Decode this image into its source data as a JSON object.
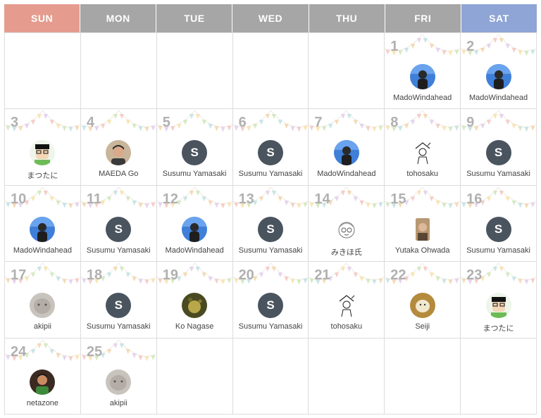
{
  "weekdays": [
    {
      "label": "SUN",
      "color": "#e59c8f"
    },
    {
      "label": "MON",
      "color": "#a6a6a6"
    },
    {
      "label": "TUE",
      "color": "#a6a6a6"
    },
    {
      "label": "WED",
      "color": "#a6a6a6"
    },
    {
      "label": "THU",
      "color": "#a6a6a6"
    },
    {
      "label": "FRI",
      "color": "#a6a6a6"
    },
    {
      "label": "SAT",
      "color": "#8fa5d6"
    }
  ],
  "leading_blank_days": 5,
  "days": [
    {
      "day": "1",
      "name": "MadoWindahead",
      "avatar": "photo-blue"
    },
    {
      "day": "2",
      "name": "MadoWindahead",
      "avatar": "photo-blue"
    },
    {
      "day": "3",
      "name": "まつたに",
      "avatar": "cartoon-green"
    },
    {
      "day": "4",
      "name": "MAEDA Go",
      "avatar": "photo-tan"
    },
    {
      "day": "5",
      "name": "Susumu Yamasaki",
      "avatar": "letter",
      "letter": "S"
    },
    {
      "day": "6",
      "name": "Susumu Yamasaki",
      "avatar": "letter",
      "letter": "S"
    },
    {
      "day": "7",
      "name": "MadoWindahead",
      "avatar": "photo-blue"
    },
    {
      "day": "8",
      "name": "tohosaku",
      "avatar": "sketch"
    },
    {
      "day": "9",
      "name": "Susumu Yamasaki",
      "avatar": "letter",
      "letter": "S"
    },
    {
      "day": "10",
      "name": "MadoWindahead",
      "avatar": "photo-blue"
    },
    {
      "day": "11",
      "name": "Susumu Yamasaki",
      "avatar": "letter",
      "letter": "S"
    },
    {
      "day": "12",
      "name": "MadoWindahead",
      "avatar": "photo-blue"
    },
    {
      "day": "13",
      "name": "Susumu Yamasaki",
      "avatar": "letter",
      "letter": "S"
    },
    {
      "day": "14",
      "name": "みきほ氏",
      "avatar": "sketch-face"
    },
    {
      "day": "15",
      "name": "Yutaka Ohwada",
      "avatar": "photo-brown"
    },
    {
      "day": "16",
      "name": "Susumu Yamasaki",
      "avatar": "letter",
      "letter": "S"
    },
    {
      "day": "17",
      "name": "akipii",
      "avatar": "photo-grey"
    },
    {
      "day": "18",
      "name": "Susumu Yamasaki",
      "avatar": "letter",
      "letter": "S"
    },
    {
      "day": "19",
      "name": "Ko Nagase",
      "avatar": "photo-olive"
    },
    {
      "day": "20",
      "name": "Susumu Yamasaki",
      "avatar": "letter",
      "letter": "S"
    },
    {
      "day": "21",
      "name": "tohosaku",
      "avatar": "sketch"
    },
    {
      "day": "22",
      "name": "Seiji",
      "avatar": "photo-cream"
    },
    {
      "day": "23",
      "name": "まつたに",
      "avatar": "cartoon-green"
    },
    {
      "day": "24",
      "name": "netazone",
      "avatar": "photo-dark"
    },
    {
      "day": "25",
      "name": "akipii",
      "avatar": "photo-grey"
    }
  ],
  "total_cells": 35
}
